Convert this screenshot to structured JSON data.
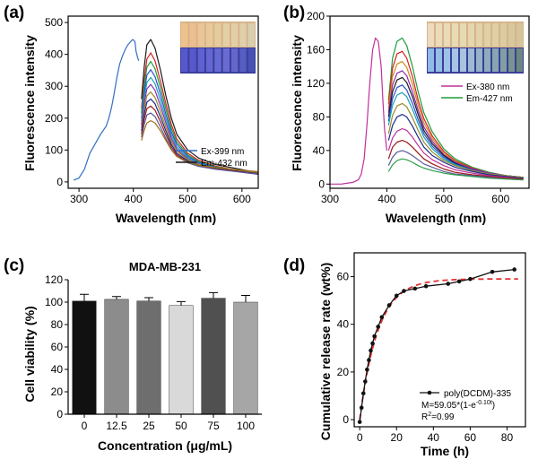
{
  "chart_data": [
    {
      "panel": "(a)",
      "type": "line",
      "xlabel": "Wavelength (nm)",
      "ylabel": "Fluorescence intensity",
      "xlim": [
        280,
        630
      ],
      "ylim": [
        -20,
        520
      ],
      "xticks": [
        300,
        400,
        500,
        600
      ],
      "yticks": [
        0,
        100,
        200,
        300,
        400,
        500
      ],
      "legend_position": "middle-right",
      "has_inset_photo": true,
      "series": [
        {
          "name": "Ex-399 nm",
          "color": "#2f6fc1",
          "x": [
            290,
            300,
            310,
            320,
            330,
            340,
            350,
            355,
            360,
            365,
            370,
            375,
            380,
            385,
            390,
            395,
            399,
            403,
            405,
            408,
            410
          ],
          "y": [
            5,
            12,
            40,
            90,
            120,
            150,
            175,
            200,
            235,
            280,
            330,
            370,
            395,
            415,
            430,
            440,
            447,
            440,
            410,
            390,
            380
          ]
        },
        {
          "name": "Em-432 nm",
          "color": "#1a1a1a",
          "x": [
            415,
            420,
            425,
            432,
            440,
            450,
            460,
            470,
            480,
            500,
            520,
            550,
            580,
            610,
            630
          ],
          "y": [
            260,
            360,
            430,
            447,
            420,
            350,
            270,
            200,
            150,
            100,
            75,
            55,
            45,
            35,
            30
          ]
        },
        {
          "name": "",
          "color": "#d62020",
          "x": [
            415,
            420,
            425,
            432,
            440,
            450,
            460,
            470,
            480,
            500,
            520,
            550,
            580,
            610,
            630
          ],
          "y": [
            230,
            320,
            385,
            405,
            380,
            315,
            245,
            180,
            135,
            90,
            68,
            50,
            40,
            32,
            28
          ]
        },
        {
          "name": "",
          "color": "#1e9e3a",
          "x": [
            415,
            420,
            425,
            432,
            440,
            450,
            460,
            470,
            480,
            500,
            520,
            550,
            580,
            610,
            630
          ],
          "y": [
            215,
            300,
            360,
            378,
            355,
            295,
            228,
            168,
            126,
            85,
            64,
            48,
            39,
            31,
            27
          ]
        },
        {
          "name": "",
          "color": "#2a4fd0",
          "x": [
            415,
            420,
            425,
            432,
            440,
            450,
            460,
            470,
            480,
            500,
            520,
            550,
            580,
            610,
            630
          ],
          "y": [
            200,
            280,
            335,
            352,
            330,
            275,
            212,
            156,
            118,
            80,
            61,
            46,
            37,
            30,
            26
          ]
        },
        {
          "name": "",
          "color": "#17a2b8",
          "x": [
            415,
            420,
            425,
            432,
            440,
            450,
            460,
            470,
            480,
            500,
            520,
            550,
            580,
            610,
            630
          ],
          "y": [
            190,
            262,
            312,
            328,
            308,
            256,
            198,
            146,
            110,
            76,
            58,
            44,
            36,
            29,
            25
          ]
        },
        {
          "name": "",
          "color": "#8e2bb3",
          "x": [
            415,
            420,
            425,
            432,
            440,
            450,
            460,
            470,
            480,
            500,
            520,
            550,
            580,
            610,
            630
          ],
          "y": [
            180,
            245,
            292,
            306,
            287,
            238,
            185,
            136,
            103,
            72,
            56,
            43,
            35,
            28,
            24
          ]
        },
        {
          "name": "",
          "color": "#9a8a2a",
          "x": [
            415,
            420,
            425,
            432,
            440,
            450,
            460,
            470,
            480,
            500,
            520,
            550,
            580,
            610,
            630
          ],
          "y": [
            170,
            228,
            270,
            282,
            265,
            220,
            172,
            127,
            97,
            70,
            55,
            44,
            38,
            32,
            28
          ]
        },
        {
          "name": "",
          "color": "#1b2a8a",
          "x": [
            415,
            420,
            425,
            432,
            440,
            450,
            460,
            470,
            480,
            500,
            520,
            550,
            580,
            610,
            630
          ],
          "y": [
            160,
            212,
            250,
            260,
            245,
            204,
            160,
            118,
            90,
            66,
            52,
            42,
            36,
            30,
            26
          ]
        },
        {
          "name": "",
          "color": "#9a1818",
          "x": [
            415,
            420,
            425,
            432,
            440,
            450,
            460,
            470,
            480,
            500,
            520,
            550,
            580,
            610,
            630
          ],
          "y": [
            150,
            196,
            230,
            238,
            225,
            188,
            148,
            110,
            85,
            63,
            50,
            41,
            35,
            29,
            25
          ]
        },
        {
          "name": "",
          "color": "#5a5a9a",
          "x": [
            415,
            420,
            425,
            432,
            440,
            450,
            460,
            470,
            480,
            500,
            520,
            550,
            580,
            610,
            630
          ],
          "y": [
            140,
            180,
            210,
            216,
            205,
            172,
            136,
            102,
            80,
            60,
            49,
            40,
            34,
            28,
            24
          ]
        },
        {
          "name": "",
          "color": "#a0701a",
          "x": [
            415,
            420,
            425,
            432,
            440,
            450,
            460,
            470,
            480,
            500,
            520,
            550,
            580,
            610,
            630
          ],
          "y": [
            130,
            162,
            185,
            192,
            185,
            160,
            130,
            100,
            80,
            62,
            52,
            45,
            40,
            35,
            32
          ]
        }
      ]
    },
    {
      "panel": "(b)",
      "type": "line",
      "xlabel": "Wavelength (nm)",
      "ylabel": "Fluorescence intensity",
      "xlim": [
        300,
        650
      ],
      "ylim": [
        -5,
        200
      ],
      "xticks": [
        300,
        400,
        500,
        600
      ],
      "yticks": [
        0,
        40,
        80,
        120,
        160,
        200
      ],
      "legend_position": "middle-right",
      "has_inset_photo": true,
      "series": [
        {
          "name": "Ex-380 nm",
          "color": "#c0309a",
          "x": [
            300,
            320,
            340,
            350,
            355,
            360,
            365,
            370,
            375,
            380,
            385,
            390,
            393,
            396,
            400
          ],
          "y": [
            0,
            0,
            2,
            5,
            12,
            30,
            70,
            120,
            160,
            174,
            170,
            140,
            100,
            65,
            40
          ]
        },
        {
          "name": "Em-427 nm",
          "color": "#1e9e3a",
          "x": [
            403,
            410,
            418,
            427,
            435,
            445,
            455,
            465,
            480,
            500,
            520,
            550,
            580,
            610,
            640
          ],
          "y": [
            100,
            150,
            170,
            174,
            165,
            140,
            110,
            85,
            62,
            42,
            30,
            20,
            14,
            10,
            8
          ]
        },
        {
          "name": "",
          "color": "#d62020",
          "x": [
            403,
            410,
            418,
            427,
            435,
            445,
            455,
            465,
            480,
            500,
            520,
            550,
            580,
            610,
            640
          ],
          "y": [
            95,
            138,
            155,
            158,
            150,
            128,
            100,
            78,
            57,
            39,
            28,
            19,
            13,
            10,
            8
          ]
        },
        {
          "name": "",
          "color": "#d28a1a",
          "x": [
            403,
            410,
            418,
            427,
            435,
            445,
            455,
            465,
            480,
            500,
            520,
            550,
            580,
            610,
            640
          ],
          "y": [
            90,
            128,
            143,
            146,
            139,
            119,
            94,
            73,
            54,
            37,
            27,
            18,
            13,
            10,
            8
          ]
        },
        {
          "name": "",
          "color": "#8e2bb3",
          "x": [
            403,
            410,
            418,
            427,
            435,
            445,
            455,
            465,
            480,
            500,
            520,
            550,
            580,
            610,
            640
          ],
          "y": [
            85,
            118,
            132,
            135,
            129,
            110,
            88,
            68,
            51,
            35,
            26,
            18,
            13,
            10,
            8
          ]
        },
        {
          "name": "",
          "color": "#1a1a1a",
          "x": [
            403,
            410,
            418,
            427,
            435,
            445,
            455,
            465,
            480,
            500,
            520,
            550,
            580,
            610,
            640
          ],
          "y": [
            80,
            110,
            124,
            127,
            121,
            104,
            83,
            64,
            48,
            34,
            25,
            17,
            12,
            10,
            8
          ]
        },
        {
          "name": "",
          "color": "#2a4fd0",
          "x": [
            403,
            410,
            418,
            427,
            435,
            445,
            455,
            465,
            480,
            500,
            520,
            550,
            580,
            610,
            640
          ],
          "y": [
            75,
            102,
            115,
            118,
            112,
            96,
            77,
            60,
            45,
            32,
            24,
            17,
            12,
            10,
            8
          ]
        },
        {
          "name": "",
          "color": "#17a2b8",
          "x": [
            403,
            410,
            418,
            427,
            435,
            445,
            455,
            465,
            480,
            500,
            520,
            550,
            580,
            610,
            640
          ],
          "y": [
            70,
            94,
            106,
            109,
            104,
            89,
            72,
            56,
            42,
            30,
            23,
            16,
            12,
            10,
            8
          ]
        },
        {
          "name": "",
          "color": "#9a8a2a",
          "x": [
            403,
            410,
            418,
            427,
            435,
            445,
            455,
            465,
            480,
            500,
            520,
            550,
            580,
            610,
            640
          ],
          "y": [
            60,
            82,
            93,
            96,
            92,
            79,
            64,
            50,
            38,
            28,
            22,
            16,
            12,
            10,
            8
          ]
        },
        {
          "name": "",
          "color": "#1b2a8a",
          "x": [
            403,
            410,
            418,
            427,
            435,
            445,
            455,
            465,
            480,
            500,
            520,
            550,
            580,
            610,
            640
          ],
          "y": [
            52,
            70,
            80,
            83,
            80,
            69,
            56,
            44,
            34,
            26,
            20,
            15,
            11,
            9,
            7
          ]
        },
        {
          "name": "",
          "color": "#c0309a",
          "x": [
            403,
            410,
            418,
            427,
            435,
            445,
            455,
            465,
            480,
            500,
            520,
            550,
            580,
            610,
            640
          ],
          "y": [
            40,
            55,
            63,
            66,
            64,
            56,
            46,
            37,
            29,
            22,
            17,
            13,
            10,
            8,
            6
          ]
        },
        {
          "name": "",
          "color": "#9a1818",
          "x": [
            403,
            410,
            418,
            427,
            435,
            445,
            455,
            465,
            480,
            500,
            520,
            550,
            580,
            610,
            640
          ],
          "y": [
            30,
            44,
            50,
            52,
            50,
            44,
            37,
            30,
            24,
            18,
            14,
            11,
            9,
            7,
            6
          ]
        },
        {
          "name": "",
          "color": "#5a5a9a",
          "x": [
            403,
            410,
            418,
            427,
            435,
            445,
            455,
            465,
            480,
            500,
            520,
            550,
            580,
            610,
            640
          ],
          "y": [
            22,
            32,
            38,
            40,
            38,
            34,
            29,
            24,
            20,
            15,
            12,
            10,
            8,
            6,
            5
          ]
        },
        {
          "name": "",
          "color": "#2e9e4a",
          "x": [
            403,
            410,
            418,
            427,
            435,
            445,
            455,
            465,
            480,
            500,
            520,
            550,
            580,
            610,
            640
          ],
          "y": [
            15,
            23,
            28,
            30,
            29,
            26,
            22,
            19,
            16,
            13,
            11,
            9,
            7,
            6,
            5
          ]
        }
      ]
    },
    {
      "panel": "(c)",
      "type": "bar",
      "title": "MDA-MB-231",
      "xlabel": "Concentration (μg/mL)",
      "ylabel": "Cell viability (%)",
      "categories": [
        "0",
        "12.5",
        "25",
        "50",
        "75",
        "100"
      ],
      "values": [
        101,
        102.5,
        101,
        97,
        103.5,
        100
      ],
      "errors": [
        6,
        2.5,
        3,
        3.5,
        5,
        6
      ],
      "bar_colors": [
        "#111111",
        "#8c8c8c",
        "#6e6e6e",
        "#d9d9d9",
        "#505050",
        "#a6a6a6"
      ],
      "ylim": [
        0,
        120
      ],
      "yticks": [
        0,
        20,
        40,
        60,
        80,
        100,
        120
      ]
    },
    {
      "panel": "(d)",
      "type": "scatter",
      "xlabel": "Time (h)",
      "ylabel": "Cumulative release rate (wt%)",
      "xlim": [
        -3,
        90
      ],
      "ylim": [
        -3,
        70
      ],
      "xticks": [
        0,
        20,
        40,
        60,
        80
      ],
      "yticks": [
        0,
        20,
        40,
        60
      ],
      "legend_position": "bottom-right",
      "series": [
        {
          "name": "poly(DCDM)-335",
          "color": "#111111",
          "x": [
            0,
            1,
            2,
            3,
            4,
            5,
            6,
            7,
            8,
            10,
            12,
            16,
            20,
            24,
            30,
            36,
            48,
            54,
            60,
            72,
            84
          ],
          "y": [
            -1,
            5,
            11,
            16,
            21,
            25,
            29,
            32,
            35,
            39,
            43,
            48,
            52,
            54,
            55,
            56,
            57,
            58,
            59,
            62,
            63
          ]
        }
      ],
      "fit": {
        "color": "#e03030",
        "M": 59.05,
        "k": 0.101
      },
      "equation_text": [
        "M=59.05*(1-e",
        "-0.10t",
        ")"
      ],
      "r2_text": [
        "R",
        "2",
        "=0.99"
      ]
    }
  ]
}
